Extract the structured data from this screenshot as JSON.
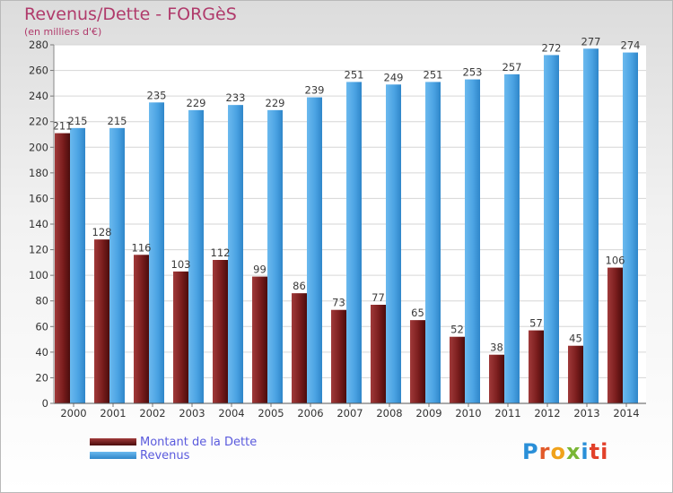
{
  "header": {
    "title": "Revenus/Dette - FORGèS",
    "subtitle": "(en milliers d'€)"
  },
  "chart_data": {
    "type": "bar",
    "title": "Revenus/Dette - FORGèS",
    "subtitle": "(en milliers d'€)",
    "xlabel": "",
    "ylabel": "",
    "ylim": [
      0,
      280
    ],
    "yticks": [
      0,
      20,
      40,
      60,
      80,
      100,
      120,
      140,
      160,
      180,
      200,
      220,
      240,
      260,
      280
    ],
    "grid": true,
    "legend_position": "bottom-left",
    "categories": [
      "2000",
      "2001",
      "2002",
      "2003",
      "2004",
      "2005",
      "2006",
      "2007",
      "2008",
      "2009",
      "2010",
      "2011",
      "2012",
      "2013",
      "2014"
    ],
    "series": [
      {
        "name": "Montant de la Dette",
        "color": "#7a1d1d",
        "values": [
          211,
          128,
          116,
          103,
          112,
          99,
          86,
          73,
          77,
          65,
          52,
          38,
          57,
          45,
          106
        ]
      },
      {
        "name": "Revenus",
        "color": "#4ba3e3",
        "values": [
          215,
          215,
          235,
          229,
          233,
          229,
          239,
          251,
          249,
          251,
          253,
          257,
          272,
          277,
          274
        ]
      }
    ]
  },
  "legend": {
    "items": [
      {
        "label": "Montant de la Dette",
        "color": "#7a1d1d"
      },
      {
        "label": "Revenus",
        "color": "#4ba3e3"
      }
    ]
  },
  "logo": {
    "letters": [
      "P",
      "r",
      "o",
      "x",
      "i",
      "ti"
    ]
  }
}
